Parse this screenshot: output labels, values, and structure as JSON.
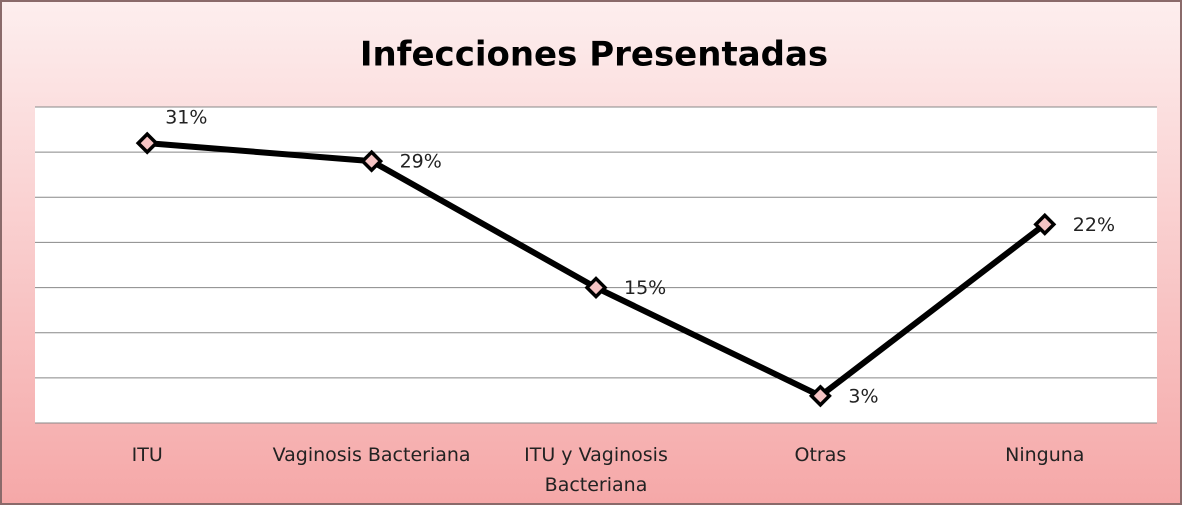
{
  "chart_data": {
    "type": "line",
    "title": "Infecciones Presentadas",
    "categories": [
      "ITU",
      "Vaginosis Bacteriana",
      "ITU y Vaginosis Bacteriana",
      "Otras",
      "Ninguna"
    ],
    "values": [
      31,
      29,
      15,
      3,
      22
    ],
    "value_labels": [
      "31%",
      "29%",
      "15%",
      "3%",
      "22%"
    ],
    "color": "#000000",
    "marker_color": "#f6c4c4",
    "ylim": [
      0,
      35
    ],
    "yticks": [
      0,
      5,
      10,
      15,
      20,
      25,
      30,
      35
    ],
    "grid": true
  }
}
